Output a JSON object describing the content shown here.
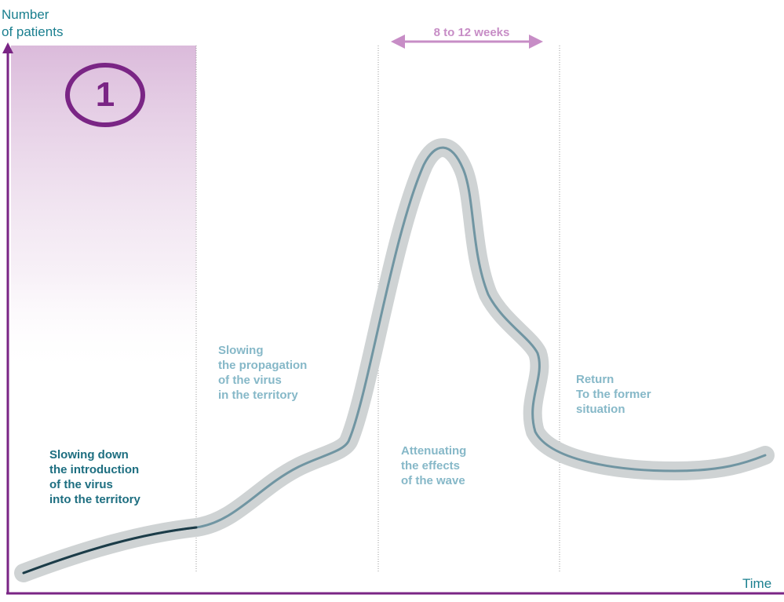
{
  "axes": {
    "y_label": "Number\nof patients",
    "x_label": "Time"
  },
  "phase_marker": "1",
  "duration_label": "8 to 12 weeks",
  "phases": [
    {
      "label": "Slowing down\nthe introduction\nof the virus\ninto the territory"
    },
    {
      "label": "Slowing\nthe propagation\nof the virus\nin the territory"
    },
    {
      "label": "Attenuating\nthe effects\nof the wave"
    },
    {
      "label": "Return\nTo the former\nsituation"
    }
  ],
  "colors": {
    "axis": "#7a2585",
    "highlight": "#d9b7d9",
    "duration_arrow": "#c78dc6",
    "curve_band": "#cfd3d4",
    "curve_line": "#5f8a99",
    "phase_1_text": "#1d6e80",
    "phase_text": "#86b8c8"
  }
}
